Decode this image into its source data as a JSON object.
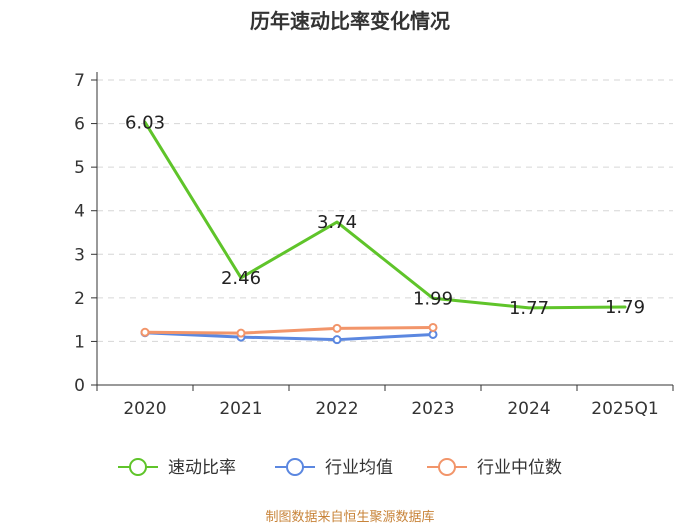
{
  "chart_data": {
    "type": "line",
    "title": "历年速动比率变化情况",
    "categories": [
      "2020",
      "2021",
      "2022",
      "2023",
      "2024",
      "2025Q1"
    ],
    "ylim": [
      0,
      7
    ],
    "yticks": [
      0,
      1,
      2,
      3,
      4,
      5,
      6,
      7
    ],
    "grid": true,
    "legend_position": "bottom",
    "series": [
      {
        "name": "速动比率",
        "color": "#5fc42a",
        "values": [
          6.03,
          2.46,
          3.74,
          1.99,
          1.77,
          1.79
        ],
        "data_labels": [
          "6.03",
          "2.46",
          "3.74",
          "1.99",
          "1.77",
          "1.79"
        ]
      },
      {
        "name": "行业均值",
        "color": "#5b87e0",
        "values": [
          1.2,
          1.1,
          1.04,
          1.16,
          null,
          null
        ]
      },
      {
        "name": "行业中位数",
        "color": "#f2956a",
        "values": [
          1.21,
          1.19,
          1.3,
          1.32,
          null,
          null
        ]
      }
    ]
  },
  "source": "制图数据来自恒生聚源数据库"
}
